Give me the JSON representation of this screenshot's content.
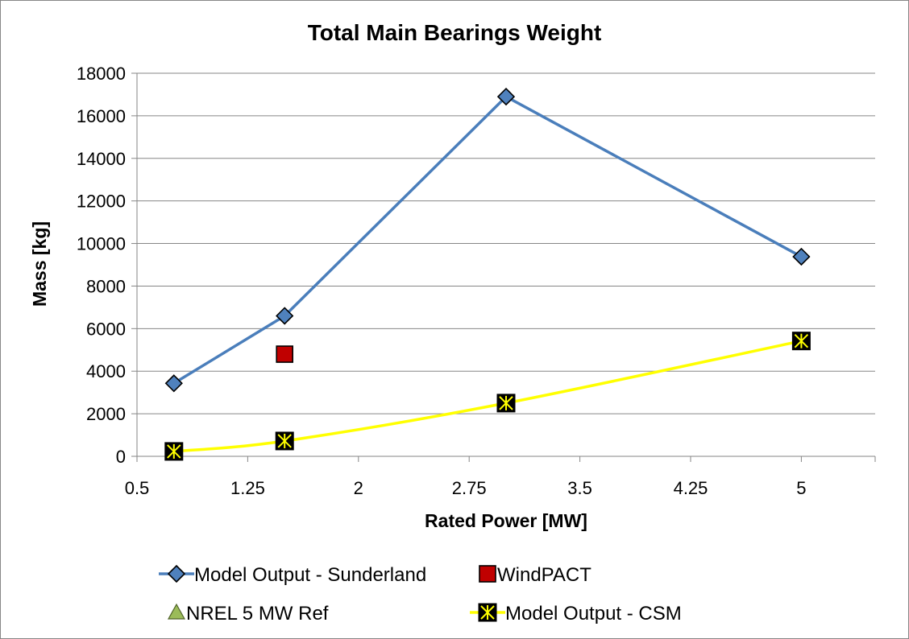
{
  "chart_data": {
    "type": "scatter",
    "title": "Total Main Bearings Weight",
    "xlabel": "Rated Power [MW]",
    "ylabel": "Mass [kg]",
    "xlim": [
      0.5,
      5.5
    ],
    "ylim": [
      0,
      18000
    ],
    "xticks": [
      "0.5",
      "1.25",
      "2",
      "2.75",
      "3.5",
      "4.25",
      "5"
    ],
    "xtick_values": [
      0.5,
      1.25,
      2,
      2.75,
      3.5,
      4.25,
      5
    ],
    "yticks": [
      "0",
      "2000",
      "4000",
      "6000",
      "8000",
      "10000",
      "12000",
      "14000",
      "16000",
      "18000"
    ],
    "ytick_values": [
      0,
      2000,
      4000,
      6000,
      8000,
      10000,
      12000,
      14000,
      16000,
      18000
    ],
    "grid": "horizontal",
    "legend_position": "bottom",
    "series": [
      {
        "name": "Model Output - Sunderland",
        "marker": "diamond",
        "line": true,
        "color": "#4a7ebb",
        "marker_fill": "#4f81bd",
        "points": [
          [
            0.75,
            3430
          ],
          [
            1.5,
            6600
          ],
          [
            3.0,
            16900
          ],
          [
            5.0,
            9380
          ]
        ]
      },
      {
        "name": "WindPACT",
        "marker": "square",
        "line": false,
        "color": "#c00000",
        "marker_fill": "#c00000",
        "points": [
          [
            1.5,
            4800
          ]
        ]
      },
      {
        "name": "NREL 5 MW Ref",
        "marker": "triangle",
        "line": false,
        "color": "#9bbb59",
        "marker_fill": "#9bbb59",
        "points": []
      },
      {
        "name": "Model Output - CSM",
        "marker": "x-square",
        "line": true,
        "color": "#ffff00",
        "marker_fill": "#000000",
        "points": [
          [
            0.75,
            230
          ],
          [
            1.5,
            720
          ],
          [
            3.0,
            2500
          ],
          [
            5.0,
            5420
          ]
        ]
      }
    ]
  }
}
